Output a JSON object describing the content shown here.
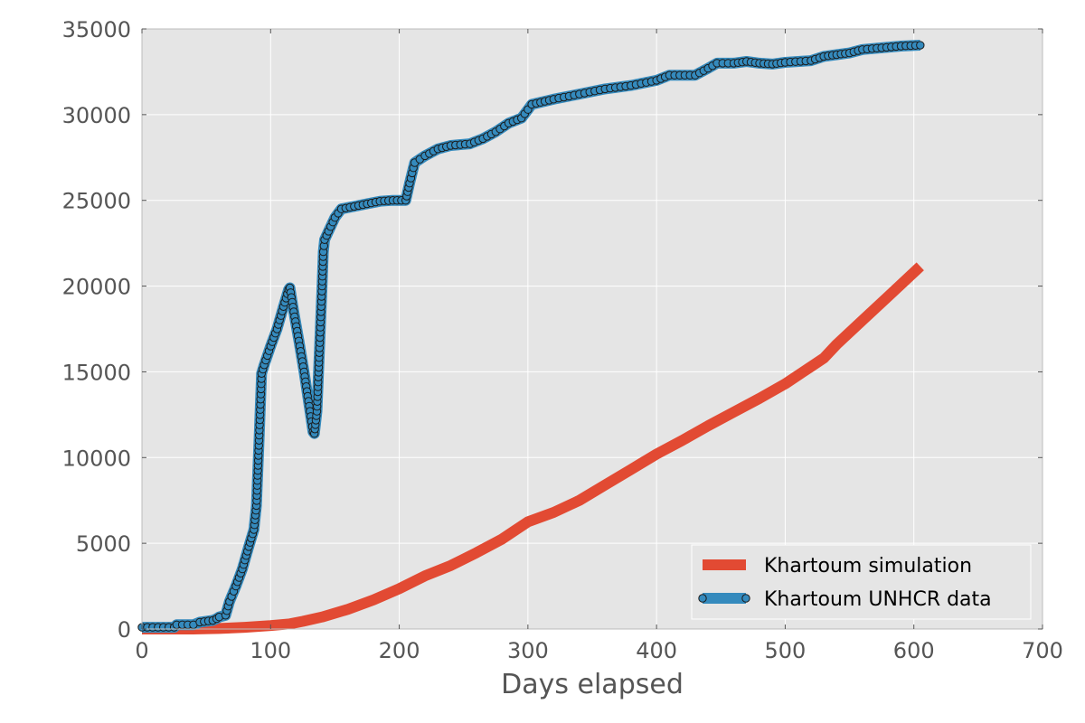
{
  "chart_data": {
    "type": "line",
    "title": "",
    "xlabel": "Days elapsed",
    "ylabel": "",
    "xlim": [
      0,
      700
    ],
    "ylim": [
      0,
      35000
    ],
    "xticks": [
      0,
      100,
      200,
      300,
      400,
      500,
      600,
      700
    ],
    "yticks": [
      0,
      5000,
      10000,
      15000,
      20000,
      25000,
      30000,
      35000
    ],
    "xtick_labels": [
      "0",
      "100",
      "200",
      "300",
      "400",
      "500",
      "600",
      "700"
    ],
    "ytick_labels": [
      "0",
      "5000",
      "10000",
      "15000",
      "20000",
      "25000",
      "30000",
      "35000"
    ],
    "grid": true,
    "legend_position": "lower-right",
    "series": [
      {
        "name": "Khartoum simulation",
        "color": "#e24a33",
        "marker": "none",
        "points": [
          [
            0,
            0
          ],
          [
            40,
            0
          ],
          [
            60,
            30
          ],
          [
            80,
            100
          ],
          [
            100,
            200
          ],
          [
            115,
            300
          ],
          [
            125,
            450
          ],
          [
            140,
            700
          ],
          [
            160,
            1150
          ],
          [
            180,
            1700
          ],
          [
            200,
            2350
          ],
          [
            220,
            3100
          ],
          [
            240,
            3700
          ],
          [
            260,
            4450
          ],
          [
            280,
            5250
          ],
          [
            290,
            5750
          ],
          [
            300,
            6250
          ],
          [
            320,
            6800
          ],
          [
            340,
            7500
          ],
          [
            360,
            8400
          ],
          [
            380,
            9300
          ],
          [
            400,
            10200
          ],
          [
            420,
            11000
          ],
          [
            440,
            11850
          ],
          [
            460,
            12650
          ],
          [
            480,
            13450
          ],
          [
            500,
            14300
          ],
          [
            520,
            15300
          ],
          [
            530,
            15800
          ],
          [
            540,
            16600
          ],
          [
            560,
            18000
          ],
          [
            580,
            19400
          ],
          [
            605,
            21150
          ]
        ]
      },
      {
        "name": "Khartoum UNHCR data",
        "color": "#348abd",
        "marker": "circle",
        "points": [
          [
            0,
            100
          ],
          [
            25,
            100
          ],
          [
            27,
            250
          ],
          [
            40,
            250
          ],
          [
            45,
            400
          ],
          [
            55,
            500
          ],
          [
            58,
            600
          ],
          [
            60,
            700
          ],
          [
            65,
            800
          ],
          [
            68,
            1600
          ],
          [
            73,
            2500
          ],
          [
            78,
            3500
          ],
          [
            83,
            4800
          ],
          [
            87,
            5800
          ],
          [
            89,
            7200
          ],
          [
            91,
            11000
          ],
          [
            93,
            14900
          ],
          [
            95,
            15400
          ],
          [
            100,
            16500
          ],
          [
            105,
            17500
          ],
          [
            110,
            18800
          ],
          [
            114,
            19800
          ],
          [
            115,
            19900
          ],
          [
            118,
            18500
          ],
          [
            122,
            16800
          ],
          [
            126,
            15000
          ],
          [
            130,
            13000
          ],
          [
            133,
            11500
          ],
          [
            134,
            11400
          ],
          [
            136,
            12700
          ],
          [
            138,
            16400
          ],
          [
            140,
            20000
          ],
          [
            141,
            22000
          ],
          [
            142,
            22700
          ],
          [
            145,
            23200
          ],
          [
            150,
            24000
          ],
          [
            155,
            24500
          ],
          [
            165,
            24650
          ],
          [
            175,
            24800
          ],
          [
            185,
            24950
          ],
          [
            195,
            25000
          ],
          [
            205,
            25000
          ],
          [
            208,
            26000
          ],
          [
            212,
            27200
          ],
          [
            220,
            27600
          ],
          [
            230,
            28000
          ],
          [
            240,
            28200
          ],
          [
            255,
            28300
          ],
          [
            265,
            28600
          ],
          [
            275,
            29000
          ],
          [
            285,
            29500
          ],
          [
            295,
            29800
          ],
          [
            300,
            30300
          ],
          [
            303,
            30600
          ],
          [
            320,
            30900
          ],
          [
            340,
            31200
          ],
          [
            360,
            31500
          ],
          [
            380,
            31700
          ],
          [
            400,
            32000
          ],
          [
            410,
            32300
          ],
          [
            430,
            32300
          ],
          [
            440,
            32700
          ],
          [
            447,
            33000
          ],
          [
            460,
            33000
          ],
          [
            470,
            33100
          ],
          [
            480,
            33000
          ],
          [
            490,
            32950
          ],
          [
            500,
            33050
          ],
          [
            520,
            33150
          ],
          [
            530,
            33400
          ],
          [
            540,
            33500
          ],
          [
            550,
            33600
          ],
          [
            560,
            33800
          ],
          [
            575,
            33900
          ],
          [
            590,
            34000
          ],
          [
            605,
            34050
          ]
        ]
      }
    ]
  }
}
